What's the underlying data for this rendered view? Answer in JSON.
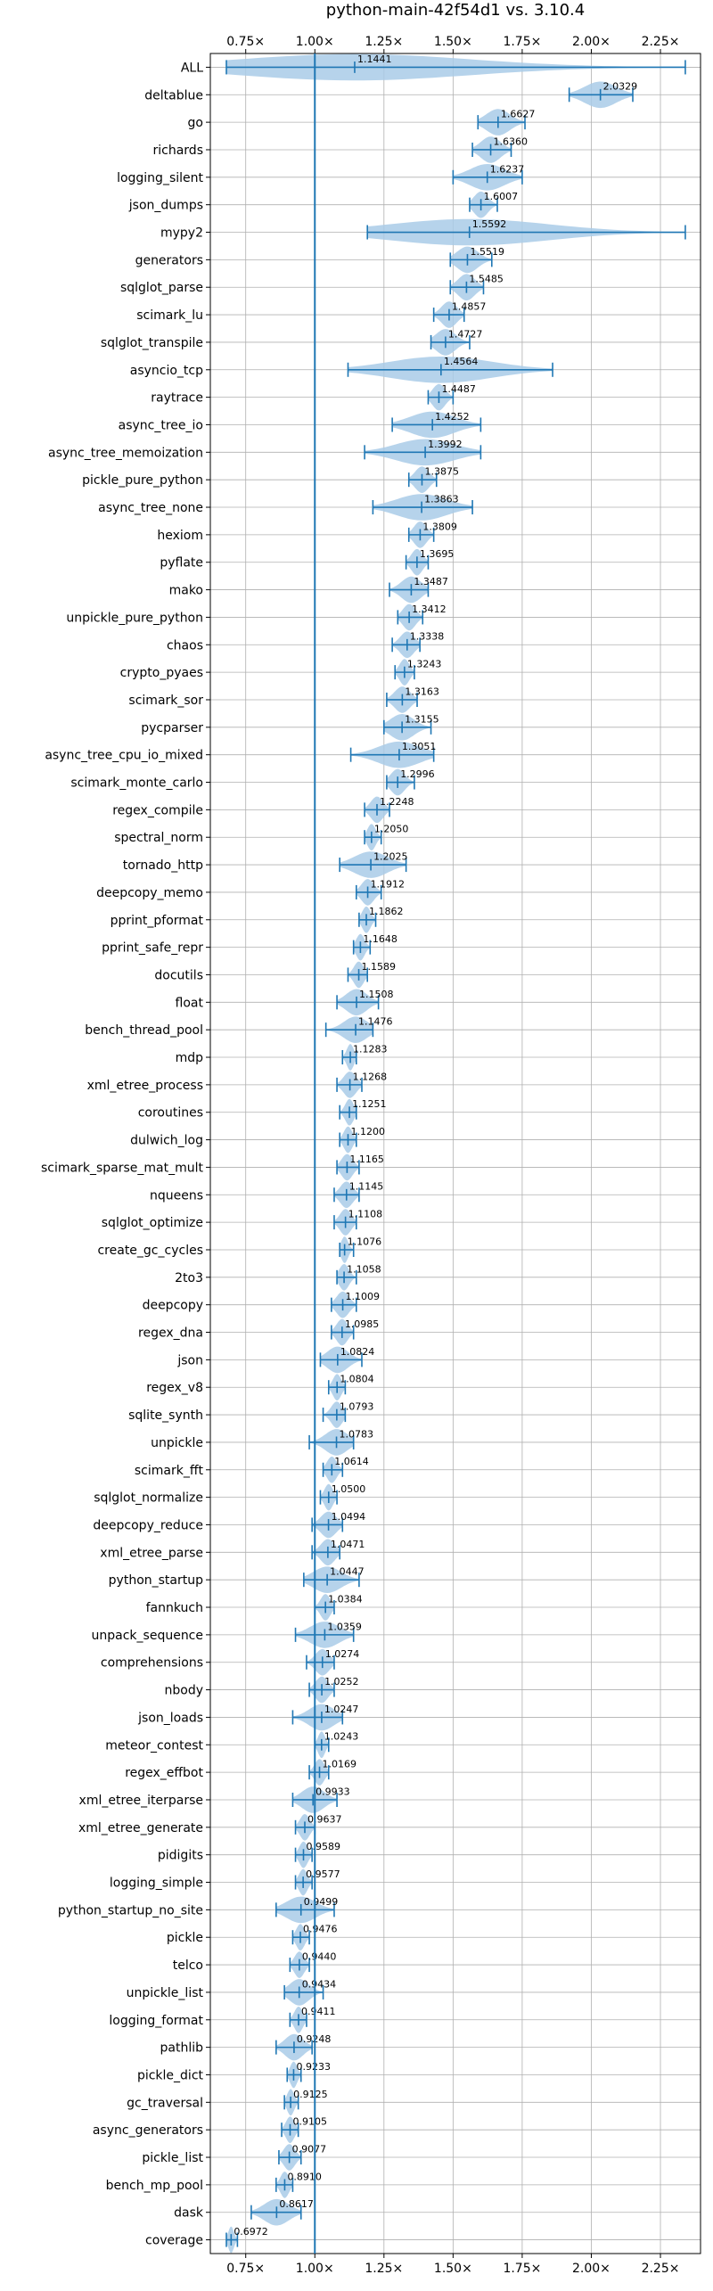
{
  "chart_data": {
    "type": "violin",
    "title": "python-main-42f54d1 vs. 3.10.4",
    "xlabel": "",
    "ylabel": "",
    "xlim": [
      0.622,
      2.395
    ],
    "xticks": [
      0.75,
      1.0,
      1.25,
      1.5,
      1.75,
      2.0,
      2.25
    ],
    "xtick_labels": [
      "0.75×",
      "1.00×",
      "1.25×",
      "1.50×",
      "1.75×",
      "2.00×",
      "2.25×"
    ],
    "reference_line": 1.0,
    "grid": true,
    "colors": {
      "violin": "#a9cbe8",
      "line": "#1f77b4",
      "grid": "#b0b0b0"
    },
    "benchmarks": [
      {
        "name": "ALL",
        "mean": 1.1441,
        "min": 0.68,
        "max": 2.34
      },
      {
        "name": "deltablue",
        "mean": 2.0329,
        "min": 1.92,
        "max": 2.15
      },
      {
        "name": "go",
        "mean": 1.6627,
        "min": 1.59,
        "max": 1.76
      },
      {
        "name": "richards",
        "mean": 1.636,
        "min": 1.57,
        "max": 1.71
      },
      {
        "name": "logging_silent",
        "mean": 1.6237,
        "min": 1.5,
        "max": 1.75
      },
      {
        "name": "json_dumps",
        "mean": 1.6007,
        "min": 1.56,
        "max": 1.66
      },
      {
        "name": "mypy2",
        "mean": 1.5592,
        "min": 1.19,
        "max": 2.34
      },
      {
        "name": "generators",
        "mean": 1.5519,
        "min": 1.49,
        "max": 1.64
      },
      {
        "name": "sqlglot_parse",
        "mean": 1.5485,
        "min": 1.49,
        "max": 1.61
      },
      {
        "name": "scimark_lu",
        "mean": 1.4857,
        "min": 1.43,
        "max": 1.54
      },
      {
        "name": "sqlglot_transpile",
        "mean": 1.4727,
        "min": 1.42,
        "max": 1.56
      },
      {
        "name": "asyncio_tcp",
        "mean": 1.4564,
        "min": 1.12,
        "max": 1.86
      },
      {
        "name": "raytrace",
        "mean": 1.4487,
        "min": 1.41,
        "max": 1.5
      },
      {
        "name": "async_tree_io",
        "mean": 1.4252,
        "min": 1.28,
        "max": 1.6
      },
      {
        "name": "async_tree_memoization",
        "mean": 1.3992,
        "min": 1.18,
        "max": 1.6
      },
      {
        "name": "pickle_pure_python",
        "mean": 1.3875,
        "min": 1.34,
        "max": 1.44
      },
      {
        "name": "async_tree_none",
        "mean": 1.3863,
        "min": 1.21,
        "max": 1.57
      },
      {
        "name": "hexiom",
        "mean": 1.3809,
        "min": 1.34,
        "max": 1.43
      },
      {
        "name": "pyflate",
        "mean": 1.3695,
        "min": 1.33,
        "max": 1.41
      },
      {
        "name": "mako",
        "mean": 1.3487,
        "min": 1.27,
        "max": 1.41
      },
      {
        "name": "unpickle_pure_python",
        "mean": 1.3412,
        "min": 1.3,
        "max": 1.39
      },
      {
        "name": "chaos",
        "mean": 1.3338,
        "min": 1.28,
        "max": 1.38
      },
      {
        "name": "crypto_pyaes",
        "mean": 1.3243,
        "min": 1.29,
        "max": 1.36
      },
      {
        "name": "scimark_sor",
        "mean": 1.3163,
        "min": 1.26,
        "max": 1.37
      },
      {
        "name": "pycparser",
        "mean": 1.3155,
        "min": 1.25,
        "max": 1.42
      },
      {
        "name": "async_tree_cpu_io_mixed",
        "mean": 1.3051,
        "min": 1.13,
        "max": 1.43
      },
      {
        "name": "scimark_monte_carlo",
        "mean": 1.2996,
        "min": 1.26,
        "max": 1.36
      },
      {
        "name": "regex_compile",
        "mean": 1.2248,
        "min": 1.18,
        "max": 1.27
      },
      {
        "name": "spectral_norm",
        "mean": 1.205,
        "min": 1.18,
        "max": 1.24
      },
      {
        "name": "tornado_http",
        "mean": 1.2025,
        "min": 1.09,
        "max": 1.33
      },
      {
        "name": "deepcopy_memo",
        "mean": 1.1912,
        "min": 1.15,
        "max": 1.24
      },
      {
        "name": "pprint_pformat",
        "mean": 1.1862,
        "min": 1.16,
        "max": 1.22
      },
      {
        "name": "pprint_safe_repr",
        "mean": 1.1648,
        "min": 1.14,
        "max": 1.2
      },
      {
        "name": "docutils",
        "mean": 1.1589,
        "min": 1.12,
        "max": 1.19
      },
      {
        "name": "float",
        "mean": 1.1508,
        "min": 1.08,
        "max": 1.23
      },
      {
        "name": "bench_thread_pool",
        "mean": 1.1476,
        "min": 1.04,
        "max": 1.21
      },
      {
        "name": "mdp",
        "mean": 1.1283,
        "min": 1.1,
        "max": 1.15
      },
      {
        "name": "xml_etree_process",
        "mean": 1.1268,
        "min": 1.08,
        "max": 1.17
      },
      {
        "name": "coroutines",
        "mean": 1.1251,
        "min": 1.09,
        "max": 1.15
      },
      {
        "name": "dulwich_log",
        "mean": 1.12,
        "min": 1.09,
        "max": 1.15
      },
      {
        "name": "scimark_sparse_mat_mult",
        "mean": 1.1165,
        "min": 1.08,
        "max": 1.16
      },
      {
        "name": "nqueens",
        "mean": 1.1145,
        "min": 1.07,
        "max": 1.16
      },
      {
        "name": "sqlglot_optimize",
        "mean": 1.1108,
        "min": 1.07,
        "max": 1.15
      },
      {
        "name": "create_gc_cycles",
        "mean": 1.1076,
        "min": 1.09,
        "max": 1.14
      },
      {
        "name": "2to3",
        "mean": 1.1058,
        "min": 1.08,
        "max": 1.15
      },
      {
        "name": "deepcopy",
        "mean": 1.1009,
        "min": 1.06,
        "max": 1.15
      },
      {
        "name": "regex_dna",
        "mean": 1.0985,
        "min": 1.06,
        "max": 1.14
      },
      {
        "name": "json",
        "mean": 1.0824,
        "min": 1.02,
        "max": 1.17
      },
      {
        "name": "regex_v8",
        "mean": 1.0804,
        "min": 1.05,
        "max": 1.11
      },
      {
        "name": "sqlite_synth",
        "mean": 1.0793,
        "min": 1.03,
        "max": 1.11
      },
      {
        "name": "unpickle",
        "mean": 1.0783,
        "min": 0.98,
        "max": 1.14
      },
      {
        "name": "scimark_fft",
        "mean": 1.0614,
        "min": 1.03,
        "max": 1.1
      },
      {
        "name": "sqlglot_normalize",
        "mean": 1.05,
        "min": 1.02,
        "max": 1.08
      },
      {
        "name": "deepcopy_reduce",
        "mean": 1.0494,
        "min": 0.99,
        "max": 1.1
      },
      {
        "name": "xml_etree_parse",
        "mean": 1.0471,
        "min": 0.99,
        "max": 1.09
      },
      {
        "name": "python_startup",
        "mean": 1.0447,
        "min": 0.96,
        "max": 1.16
      },
      {
        "name": "fannkuch",
        "mean": 1.0384,
        "min": 1.0,
        "max": 1.07
      },
      {
        "name": "unpack_sequence",
        "mean": 1.0359,
        "min": 0.93,
        "max": 1.14
      },
      {
        "name": "comprehensions",
        "mean": 1.0274,
        "min": 0.97,
        "max": 1.07
      },
      {
        "name": "nbody",
        "mean": 1.0252,
        "min": 0.98,
        "max": 1.07
      },
      {
        "name": "json_loads",
        "mean": 1.0247,
        "min": 0.92,
        "max": 1.1
      },
      {
        "name": "meteor_contest",
        "mean": 1.0243,
        "min": 1.0,
        "max": 1.05
      },
      {
        "name": "regex_effbot",
        "mean": 1.0169,
        "min": 0.98,
        "max": 1.05
      },
      {
        "name": "xml_etree_iterparse",
        "mean": 0.9933,
        "min": 0.92,
        "max": 1.08
      },
      {
        "name": "xml_etree_generate",
        "mean": 0.9637,
        "min": 0.93,
        "max": 1.0
      },
      {
        "name": "pidigits",
        "mean": 0.9589,
        "min": 0.93,
        "max": 0.99
      },
      {
        "name": "logging_simple",
        "mean": 0.9577,
        "min": 0.93,
        "max": 0.99
      },
      {
        "name": "python_startup_no_site",
        "mean": 0.9499,
        "min": 0.86,
        "max": 1.07
      },
      {
        "name": "pickle",
        "mean": 0.9476,
        "min": 0.92,
        "max": 0.98
      },
      {
        "name": "telco",
        "mean": 0.944,
        "min": 0.91,
        "max": 0.98
      },
      {
        "name": "unpickle_list",
        "mean": 0.9434,
        "min": 0.89,
        "max": 1.03
      },
      {
        "name": "logging_format",
        "mean": 0.9411,
        "min": 0.91,
        "max": 0.97
      },
      {
        "name": "pathlib",
        "mean": 0.9248,
        "min": 0.86,
        "max": 0.99
      },
      {
        "name": "pickle_dict",
        "mean": 0.9233,
        "min": 0.9,
        "max": 0.95
      },
      {
        "name": "gc_traversal",
        "mean": 0.9125,
        "min": 0.89,
        "max": 0.94
      },
      {
        "name": "async_generators",
        "mean": 0.9105,
        "min": 0.88,
        "max": 0.94
      },
      {
        "name": "pickle_list",
        "mean": 0.9077,
        "min": 0.87,
        "max": 0.95
      },
      {
        "name": "bench_mp_pool",
        "mean": 0.891,
        "min": 0.86,
        "max": 0.92
      },
      {
        "name": "dask",
        "mean": 0.8617,
        "min": 0.77,
        "max": 0.95
      },
      {
        "name": "coverage",
        "mean": 0.6972,
        "min": 0.68,
        "max": 0.72
      }
    ]
  }
}
